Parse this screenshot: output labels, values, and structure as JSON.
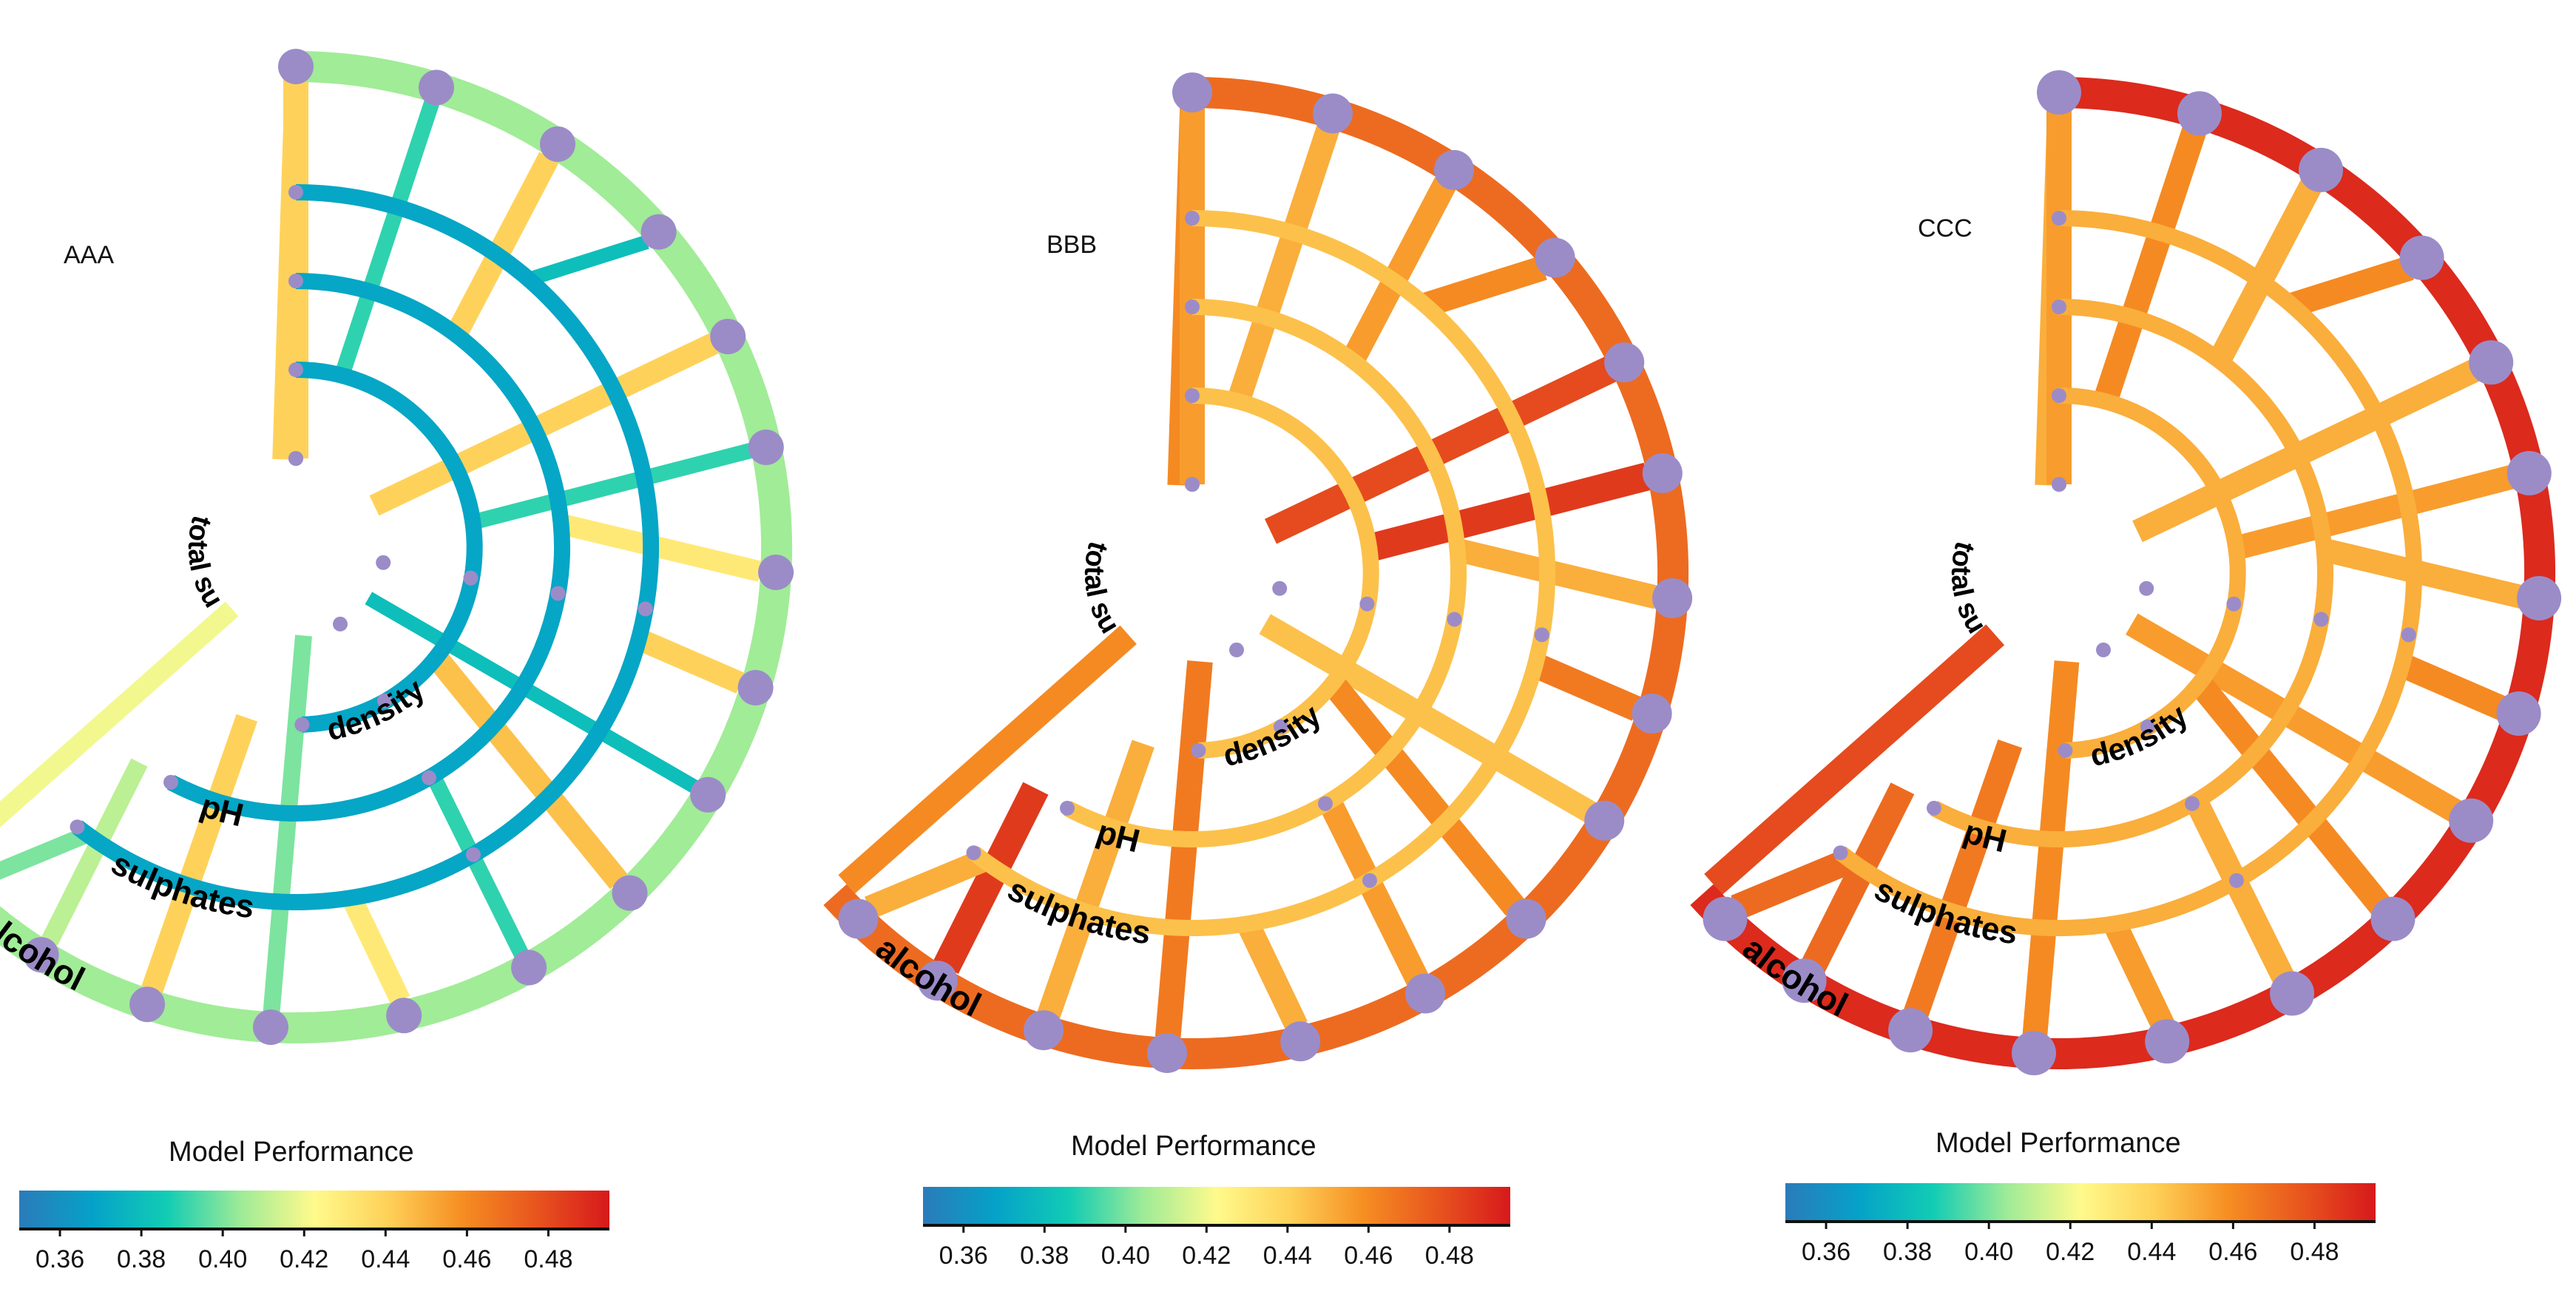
{
  "colorbar": {
    "title": "Model Performance",
    "range": [
      0.35,
      0.495
    ],
    "ticks": [
      0.36,
      0.38,
      0.4,
      0.42,
      0.44,
      0.46,
      0.48
    ],
    "tick_labels": [
      "0.36",
      "0.38",
      "0.40",
      "0.42",
      "0.44",
      "0.46",
      "0.48"
    ],
    "colors": [
      "#2b7bba",
      "#05a2c8",
      "#12ccb4",
      "#9eeb97",
      "#fffa8c",
      "#fed158",
      "#f68e22",
      "#e8551e",
      "#d7191c"
    ]
  },
  "features": [
    "total su",
    "density",
    "pH",
    "sulphates",
    "alcohol"
  ],
  "panels": [
    {
      "label": "AAA",
      "ring_values": [
        0.38,
        0.37,
        0.37,
        0.37,
        0.405
      ],
      "spoke_base": 0.44,
      "spoke_values": [
        0.44,
        0.39,
        0.44,
        0.38,
        0.44,
        0.39,
        0.43,
        0.44,
        0.38,
        0.445,
        0.39,
        0.43,
        0.4,
        0.44,
        0.41,
        0.4,
        0.42
      ],
      "labels": [
        "total su",
        "density",
        "pH",
        "sulphates",
        "alcohol"
      ]
    },
    {
      "label": "BBB",
      "ring_values": [
        0.445,
        0.445,
        0.445,
        0.445,
        0.47
      ],
      "spoke_base": 0.455,
      "spoke_values": [
        0.46,
        0.45,
        0.455,
        0.46,
        0.48,
        0.485,
        0.45,
        0.465,
        0.445,
        0.46,
        0.455,
        0.45,
        0.465,
        0.45,
        0.485,
        0.45,
        0.46
      ],
      "labels": [
        "total su",
        "density",
        "pH",
        "sulphates",
        "alcohol"
      ]
    },
    {
      "label": "CCC",
      "ring_values": [
        0.445,
        0.45,
        0.45,
        0.45,
        0.49
      ],
      "spoke_base": 0.455,
      "spoke_values": [
        0.45,
        0.46,
        0.45,
        0.46,
        0.45,
        0.455,
        0.45,
        0.46,
        0.455,
        0.46,
        0.45,
        0.455,
        0.46,
        0.465,
        0.47,
        0.47,
        0.48
      ],
      "labels": [
        "total su",
        "density",
        "pH",
        "sulphates",
        "alcohol"
      ]
    }
  ]
}
